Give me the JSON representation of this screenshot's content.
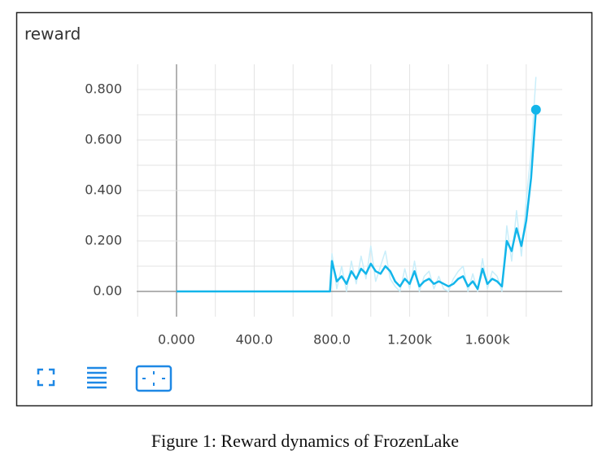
{
  "chart_data": {
    "type": "line",
    "title": "reward",
    "caption": "Figure 1: Reward dynamics of FrozenLake",
    "x": [
      0,
      790,
      800,
      825,
      850,
      875,
      900,
      925,
      950,
      975,
      1000,
      1025,
      1050,
      1075,
      1100,
      1125,
      1150,
      1175,
      1200,
      1225,
      1250,
      1275,
      1300,
      1325,
      1350,
      1375,
      1400,
      1425,
      1450,
      1475,
      1500,
      1525,
      1550,
      1575,
      1600,
      1625,
      1650,
      1675,
      1700,
      1725,
      1750,
      1775,
      1800,
      1825,
      1850
    ],
    "series": [
      {
        "color": "#c9eefa",
        "values": [
          0,
          0,
          0.15,
          0.01,
          0.1,
          0.0,
          0.12,
          0.03,
          0.14,
          0.05,
          0.18,
          0.04,
          0.1,
          0.16,
          0.05,
          0.02,
          0.0,
          0.09,
          0.01,
          0.12,
          0.0,
          0.06,
          0.08,
          0.01,
          0.06,
          0.01,
          0.0,
          0.05,
          0.08,
          0.1,
          0.0,
          0.07,
          0.0,
          0.13,
          0.01,
          0.08,
          0.06,
          0.0,
          0.26,
          0.12,
          0.32,
          0.14,
          0.36,
          0.55,
          0.85
        ]
      },
      {
        "color": "#12b5ea",
        "values": [
          0,
          0,
          0.12,
          0.04,
          0.06,
          0.03,
          0.08,
          0.05,
          0.09,
          0.07,
          0.11,
          0.08,
          0.07,
          0.1,
          0.08,
          0.04,
          0.02,
          0.05,
          0.03,
          0.08,
          0.02,
          0.04,
          0.05,
          0.03,
          0.04,
          0.03,
          0.02,
          0.03,
          0.05,
          0.06,
          0.02,
          0.04,
          0.01,
          0.09,
          0.03,
          0.05,
          0.04,
          0.02,
          0.2,
          0.16,
          0.25,
          0.18,
          0.28,
          0.45,
          0.72
        ]
      }
    ],
    "xlim": [
      -205,
      1985
    ],
    "ylim": [
      -0.1,
      0.9
    ],
    "xticks": [
      {
        "value": 0,
        "label": "0.000"
      },
      {
        "value": 400,
        "label": "400.0"
      },
      {
        "value": 800,
        "label": "800.0"
      },
      {
        "value": 1200,
        "label": "1.200k"
      },
      {
        "value": 1600,
        "label": "1.600k"
      }
    ],
    "yticks": [
      {
        "value": 0,
        "label": "0.00"
      },
      {
        "value": 0.2,
        "label": "0.200"
      },
      {
        "value": 0.4,
        "label": "0.400"
      },
      {
        "value": 0.6,
        "label": "0.600"
      },
      {
        "value": 0.8,
        "label": "0.800"
      }
    ],
    "x_minor_ticks": [
      -200,
      200,
      600,
      1000,
      1400,
      1800
    ],
    "y_minor_ticks": [
      0.1,
      0.3,
      0.5,
      0.7
    ],
    "grid": true
  }
}
